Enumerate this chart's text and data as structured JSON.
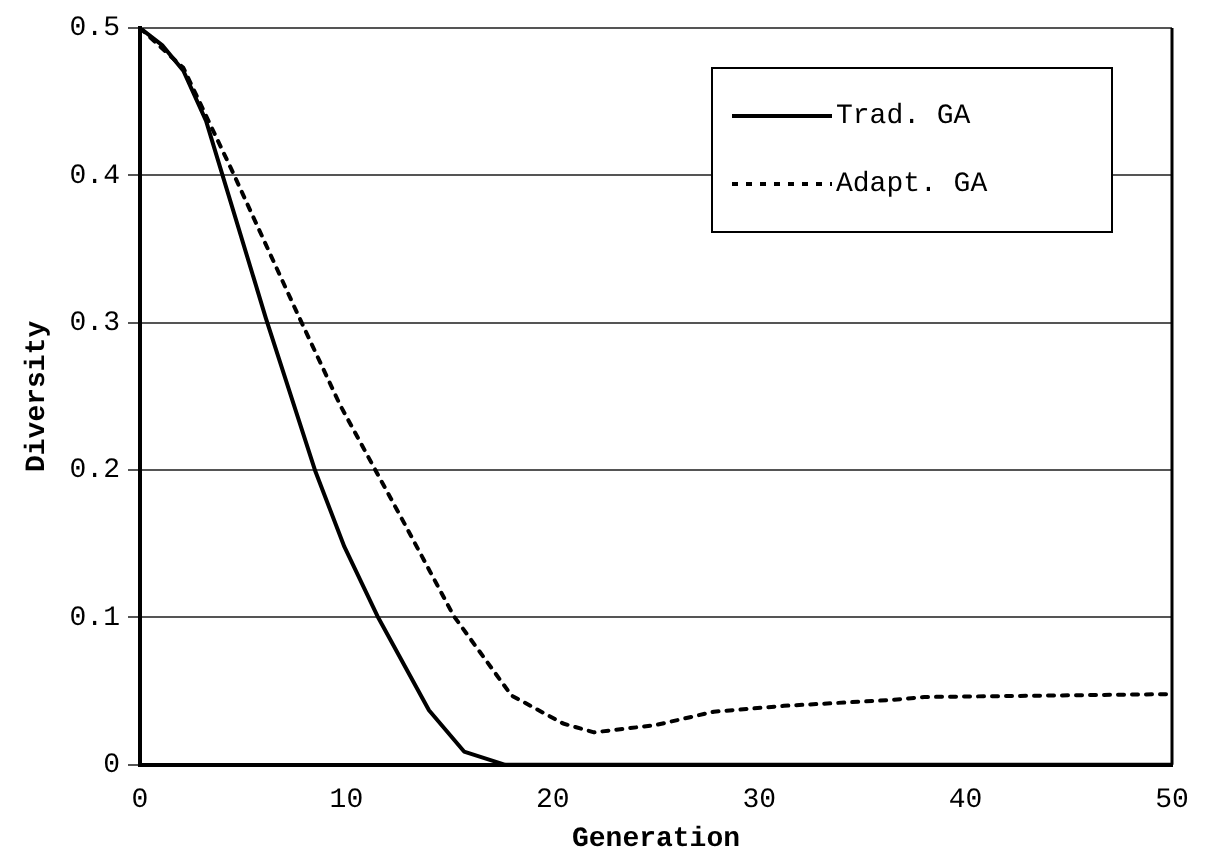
{
  "chart_data": {
    "type": "line",
    "xlabel": "Generation",
    "ylabel": "Diversity",
    "xlim": [
      0,
      50
    ],
    "xticks": [
      0,
      10,
      20,
      30,
      40,
      50
    ],
    "ylim": [
      0,
      0.5
    ],
    "yticks": [
      0,
      0.1,
      0.2,
      0.3,
      0.4,
      0.5
    ],
    "grid": "y",
    "legend": "top right",
    "marker": "none",
    "series": [
      {
        "name": "Trad. GA",
        "color": "#000000",
        "line_style": "solid",
        "x": [
          0,
          1.1,
          2.1,
          3.2,
          6.1,
          8.5,
          9.9,
          11.5,
          14,
          15.7,
          17.7,
          20,
          30,
          40,
          50
        ],
        "values": [
          0.5,
          0.488,
          0.471,
          0.437,
          0.303,
          0.199,
          0.148,
          0.101,
          0.037,
          0.009,
          0,
          0,
          0,
          0,
          0
        ]
      },
      {
        "name": "Adapt. GA",
        "color": "#000000",
        "line_style": "dotted",
        "x": [
          0,
          2.1,
          4.5,
          7.6,
          9.7,
          12.8,
          15.2,
          18,
          20.5,
          22,
          25,
          27.8,
          31.2,
          36.4,
          38,
          50
        ],
        "values": [
          0.5,
          0.473,
          0.402,
          0.307,
          0.244,
          0.164,
          0.101,
          0.047,
          0.028,
          0.022,
          0.027,
          0.036,
          0.04,
          0.044,
          0.046,
          0.048
        ]
      }
    ]
  }
}
